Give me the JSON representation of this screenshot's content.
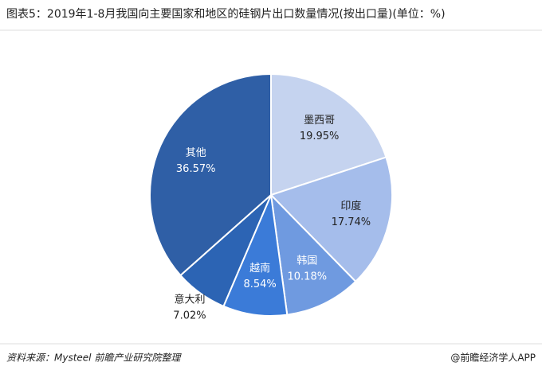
{
  "chart_data": {
    "type": "pie",
    "title": "图表5：2019年1-8月我国向主要国家和地区的硅钢片出口数量情况(按出口量)(单位：%)",
    "categories": [
      "墨西哥",
      "印度",
      "韩国",
      "越南",
      "意大利",
      "其他"
    ],
    "values": [
      19.95,
      17.74,
      10.18,
      8.54,
      7.02,
      36.57
    ],
    "value_labels": [
      "19.95%",
      "17.74%",
      "10.18%",
      "8.54%",
      "7.02%",
      "36.57%"
    ],
    "colors": [
      "#c5d3ef",
      "#a5bdeb",
      "#6f9ae0",
      "#3b7bd8",
      "#2c64b4",
      "#2f5fa6"
    ],
    "source": "资料来源：Mysteel 前瞻产业研究院整理",
    "footer": "@前瞻经济学人APP"
  }
}
